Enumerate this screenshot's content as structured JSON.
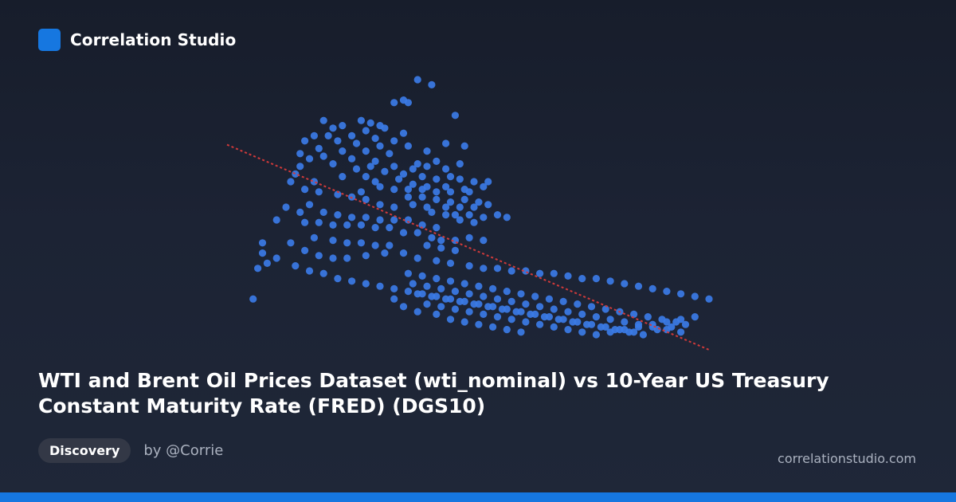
{
  "brand": {
    "name": "Correlation Studio",
    "accent_color": "#1677e0"
  },
  "title": "WTI and Brent Oil Prices Dataset (wti_nominal) vs 10-Year US Treasury Constant Maturity Rate (FRED) (DGS10)",
  "badge": "Discovery",
  "author": "by @Corrie",
  "site": "correlationstudio.com",
  "chart_data": {
    "type": "scatter",
    "grid": false,
    "axes_visible": false,
    "xlim": [
      0,
      100
    ],
    "ylim": [
      0,
      100
    ],
    "point_color": "#3b7be6",
    "trend_color": "#d13a3a",
    "trend": {
      "x": [
        0,
        100
      ],
      "y": [
        72,
        0
      ]
    },
    "points": [
      [
        38,
        100
      ],
      [
        41,
        98
      ],
      [
        35,
        92
      ],
      [
        33,
        91
      ],
      [
        36,
        91
      ],
      [
        46,
        86
      ],
      [
        18,
        84
      ],
      [
        26,
        84
      ],
      [
        28,
        83
      ],
      [
        30,
        82
      ],
      [
        22,
        82
      ],
      [
        20,
        81
      ],
      [
        31,
        81
      ],
      [
        35,
        79
      ],
      [
        27,
        80
      ],
      [
        16,
        78
      ],
      [
        19,
        78
      ],
      [
        24,
        78
      ],
      [
        29,
        77
      ],
      [
        33,
        76
      ],
      [
        14,
        76
      ],
      [
        21,
        76
      ],
      [
        25,
        75
      ],
      [
        30,
        74
      ],
      [
        36,
        74
      ],
      [
        44,
        75
      ],
      [
        48,
        74
      ],
      [
        17,
        73
      ],
      [
        22,
        72
      ],
      [
        27,
        72
      ],
      [
        32,
        71
      ],
      [
        40,
        72
      ],
      [
        13,
        71
      ],
      [
        18,
        70
      ],
      [
        24,
        69
      ],
      [
        15,
        69
      ],
      [
        29,
        68
      ],
      [
        42,
        68
      ],
      [
        47,
        67
      ],
      [
        38,
        67
      ],
      [
        20,
        67
      ],
      [
        13,
        66
      ],
      [
        44,
        65
      ],
      [
        28,
        66
      ],
      [
        33,
        66
      ],
      [
        37,
        65
      ],
      [
        40,
        66
      ],
      [
        25,
        65
      ],
      [
        31,
        64
      ],
      [
        35,
        63
      ],
      [
        12,
        63
      ],
      [
        22,
        62
      ],
      [
        27,
        62
      ],
      [
        39,
        62
      ],
      [
        45,
        62
      ],
      [
        42,
        61
      ],
      [
        47,
        61
      ],
      [
        50,
        60
      ],
      [
        34,
        61
      ],
      [
        29,
        60
      ],
      [
        11,
        60
      ],
      [
        16,
        60
      ],
      [
        37,
        59
      ],
      [
        40,
        58
      ],
      [
        44,
        58
      ],
      [
        48,
        57
      ],
      [
        52,
        58
      ],
      [
        53,
        60
      ],
      [
        30,
        58
      ],
      [
        33,
        57
      ],
      [
        36,
        57
      ],
      [
        39,
        57
      ],
      [
        42,
        56
      ],
      [
        45,
        56
      ],
      [
        49,
        56
      ],
      [
        26,
        56
      ],
      [
        21,
        55
      ],
      [
        14,
        57
      ],
      [
        17,
        56
      ],
      [
        24,
        54
      ],
      [
        27,
        53
      ],
      [
        36,
        54
      ],
      [
        39,
        54
      ],
      [
        42,
        53
      ],
      [
        45,
        52
      ],
      [
        48,
        53
      ],
      [
        51,
        52
      ],
      [
        44,
        50
      ],
      [
        47,
        50
      ],
      [
        50,
        50
      ],
      [
        53,
        51
      ],
      [
        30,
        51
      ],
      [
        33,
        50
      ],
      [
        37,
        51
      ],
      [
        40,
        50
      ],
      [
        15,
        51
      ],
      [
        10,
        50
      ],
      [
        13,
        48
      ],
      [
        18,
        48
      ],
      [
        21,
        47
      ],
      [
        24,
        46
      ],
      [
        27,
        46
      ],
      [
        30,
        45
      ],
      [
        33,
        45
      ],
      [
        36,
        45
      ],
      [
        41,
        48
      ],
      [
        44,
        47
      ],
      [
        46,
        47
      ],
      [
        49,
        47
      ],
      [
        52,
        46
      ],
      [
        55,
        47
      ],
      [
        57,
        46
      ],
      [
        8,
        45
      ],
      [
        14,
        44
      ],
      [
        17,
        44
      ],
      [
        20,
        43
      ],
      [
        23,
        43
      ],
      [
        26,
        43
      ],
      [
        29,
        42
      ],
      [
        32,
        42
      ],
      [
        39,
        43
      ],
      [
        42,
        42
      ],
      [
        47,
        45
      ],
      [
        50,
        44
      ],
      [
        35,
        40
      ],
      [
        38,
        40
      ],
      [
        41,
        38
      ],
      [
        43,
        37
      ],
      [
        46,
        37
      ],
      [
        49,
        38
      ],
      [
        52,
        37
      ],
      [
        16,
        38
      ],
      [
        20,
        37
      ],
      [
        23,
        36
      ],
      [
        26,
        36
      ],
      [
        29,
        35
      ],
      [
        32,
        35
      ],
      [
        40,
        35
      ],
      [
        43,
        34
      ],
      [
        46,
        33
      ],
      [
        11,
        36
      ],
      [
        14,
        33
      ],
      [
        5,
        36
      ],
      [
        17,
        31
      ],
      [
        20,
        30
      ],
      [
        23,
        30
      ],
      [
        27,
        31
      ],
      [
        31,
        32
      ],
      [
        35,
        32
      ],
      [
        38,
        30
      ],
      [
        42,
        29
      ],
      [
        45,
        28
      ],
      [
        49,
        27
      ],
      [
        52,
        26
      ],
      [
        55,
        26
      ],
      [
        58,
        25
      ],
      [
        61,
        25
      ],
      [
        64,
        24
      ],
      [
        67,
        24
      ],
      [
        70,
        23
      ],
      [
        73,
        22
      ],
      [
        76,
        22
      ],
      [
        79,
        21
      ],
      [
        82,
        20
      ],
      [
        85,
        19
      ],
      [
        88,
        18
      ],
      [
        91,
        17
      ],
      [
        94,
        16
      ],
      [
        97,
        15
      ],
      [
        100,
        14
      ],
      [
        5,
        32
      ],
      [
        6,
        28
      ],
      [
        4,
        26
      ],
      [
        3,
        14
      ],
      [
        8,
        30
      ],
      [
        12,
        27
      ],
      [
        15,
        25
      ],
      [
        18,
        24
      ],
      [
        21,
        22
      ],
      [
        24,
        21
      ],
      [
        27,
        20
      ],
      [
        30,
        19
      ],
      [
        33,
        18
      ],
      [
        36,
        17
      ],
      [
        39,
        16
      ],
      [
        42,
        15
      ],
      [
        45,
        14
      ],
      [
        48,
        13
      ],
      [
        51,
        12
      ],
      [
        54,
        11
      ],
      [
        57,
        10
      ],
      [
        60,
        9
      ],
      [
        63,
        8
      ],
      [
        66,
        7
      ],
      [
        69,
        6
      ],
      [
        72,
        5
      ],
      [
        75,
        4
      ],
      [
        78,
        3
      ],
      [
        81,
        2
      ],
      [
        84,
        1
      ],
      [
        36,
        24
      ],
      [
        39,
        23
      ],
      [
        42,
        22
      ],
      [
        45,
        21
      ],
      [
        48,
        20
      ],
      [
        51,
        19
      ],
      [
        54,
        18
      ],
      [
        57,
        17
      ],
      [
        60,
        16
      ],
      [
        63,
        15
      ],
      [
        66,
        14
      ],
      [
        69,
        13
      ],
      [
        72,
        12
      ],
      [
        75,
        11
      ],
      [
        78,
        10
      ],
      [
        81,
        9
      ],
      [
        84,
        8
      ],
      [
        87,
        7
      ],
      [
        90,
        6
      ],
      [
        93,
        5
      ],
      [
        37,
        20
      ],
      [
        40,
        19
      ],
      [
        43,
        18
      ],
      [
        46,
        17
      ],
      [
        49,
        16
      ],
      [
        52,
        15
      ],
      [
        55,
        14
      ],
      [
        58,
        13
      ],
      [
        61,
        12
      ],
      [
        64,
        11
      ],
      [
        67,
        10
      ],
      [
        70,
        9
      ],
      [
        73,
        8
      ],
      [
        76,
        7
      ],
      [
        79,
        6
      ],
      [
        82,
        5
      ],
      [
        85,
        4
      ],
      [
        88,
        3
      ],
      [
        91,
        2
      ],
      [
        94,
        1
      ],
      [
        38,
        16
      ],
      [
        41,
        15
      ],
      [
        44,
        14
      ],
      [
        47,
        13
      ],
      [
        50,
        12
      ],
      [
        53,
        11
      ],
      [
        56,
        10
      ],
      [
        59,
        9
      ],
      [
        62,
        8
      ],
      [
        65,
        7
      ],
      [
        68,
        6
      ],
      [
        71,
        5
      ],
      [
        74,
        4
      ],
      [
        77,
        3
      ],
      [
        80,
        2
      ],
      [
        83,
        1
      ],
      [
        86,
        0
      ],
      [
        89,
        2
      ],
      [
        92,
        3
      ],
      [
        95,
        4
      ],
      [
        40,
        12
      ],
      [
        43,
        11
      ],
      [
        46,
        10
      ],
      [
        49,
        9
      ],
      [
        52,
        8
      ],
      [
        55,
        7
      ],
      [
        58,
        6
      ],
      [
        61,
        5
      ],
      [
        64,
        4
      ],
      [
        67,
        3
      ],
      [
        70,
        2
      ],
      [
        73,
        1
      ],
      [
        76,
        0
      ],
      [
        79,
        1
      ],
      [
        82,
        2
      ],
      [
        85,
        3
      ],
      [
        88,
        4
      ],
      [
        91,
        5
      ],
      [
        94,
        6
      ],
      [
        97,
        7
      ],
      [
        38,
        9
      ],
      [
        35,
        11
      ],
      [
        33,
        14
      ],
      [
        42,
        8
      ],
      [
        45,
        6
      ],
      [
        48,
        5
      ],
      [
        51,
        4
      ],
      [
        54,
        3
      ],
      [
        57,
        2
      ],
      [
        60,
        1
      ]
    ]
  }
}
